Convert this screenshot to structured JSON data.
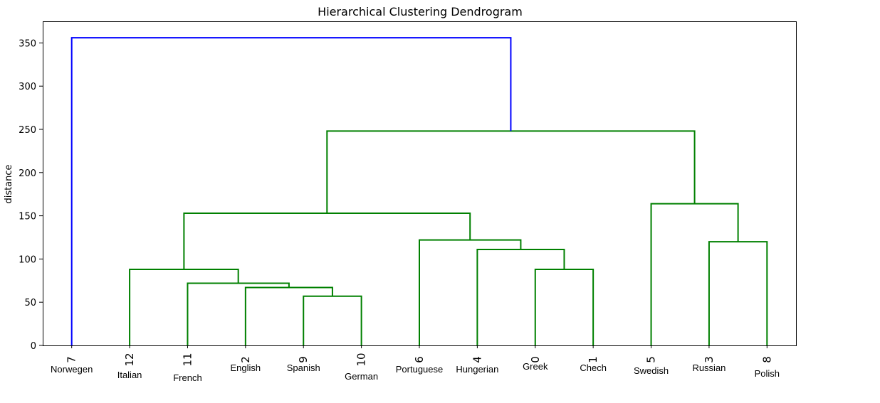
{
  "chart_data": {
    "type": "dendrogram",
    "title": "Hierarchical Clustering Dendrogram",
    "ylabel": "distance",
    "xlabel": "",
    "ylim": [
      0,
      375
    ],
    "yticks": [
      0,
      50,
      100,
      150,
      200,
      250,
      300,
      350
    ],
    "grid": false,
    "colors": {
      "above_threshold": "#0000ff",
      "cluster": "#008000",
      "frame": "#000000"
    },
    "leaves": [
      {
        "id": "7",
        "language": "Norwegen"
      },
      {
        "id": "12",
        "language": "Italian"
      },
      {
        "id": "11",
        "language": "French"
      },
      {
        "id": "2",
        "language": "English"
      },
      {
        "id": "9",
        "language": "Spanish"
      },
      {
        "id": "10",
        "language": "German"
      },
      {
        "id": "6",
        "language": "Portuguese"
      },
      {
        "id": "4",
        "language": "Hungerian"
      },
      {
        "id": "0",
        "language": "Greek"
      },
      {
        "id": "1",
        "language": "Chech"
      },
      {
        "id": "5",
        "language": "Swedish"
      },
      {
        "id": "3",
        "language": "Russian"
      },
      {
        "id": "8",
        "language": "Polish"
      }
    ],
    "merges": [
      {
        "left": "10",
        "right": "10",
        "note": ""
      },
      {
        "a": "9",
        "b": "10",
        "distance": 57
      },
      {
        "a": "2",
        "b": "9+10",
        "distance": 67
      },
      {
        "a": "11",
        "b": "2+9+10",
        "distance": 72
      },
      {
        "a": "12",
        "b": "11+2+9+10",
        "distance": 88
      },
      {
        "a": "0",
        "b": "1",
        "distance": 88
      },
      {
        "a": "4",
        "b": "0+1",
        "distance": 111
      },
      {
        "a": "6",
        "b": "4+0+1",
        "distance": 122
      },
      {
        "a": "3",
        "b": "8",
        "distance": 120
      },
      {
        "a": "5",
        "b": "3+8",
        "distance": 164
      },
      {
        "a": "12..10",
        "b": "6..1",
        "distance": 153
      },
      {
        "a": "12..1",
        "b": "5..8",
        "distance": 248
      },
      {
        "a": "7",
        "b": "12..8",
        "distance": 356
      }
    ]
  }
}
